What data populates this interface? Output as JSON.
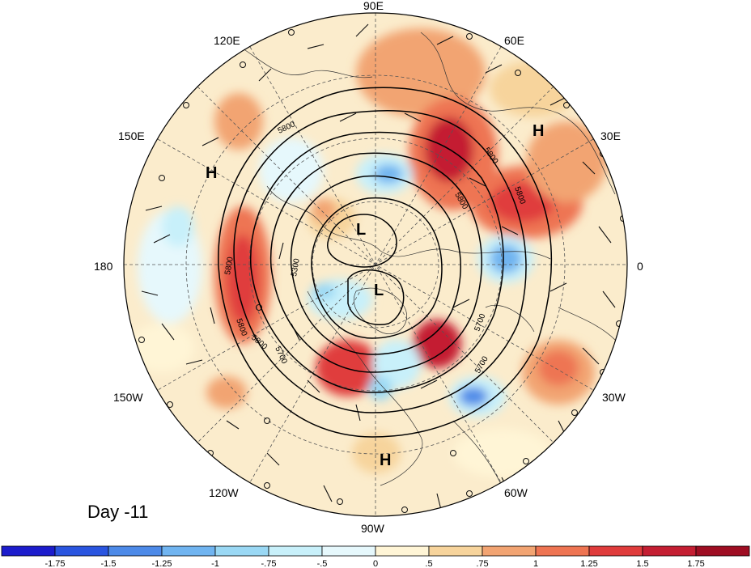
{
  "title_text": "Day -11",
  "longitude_labels": [
    {
      "id": "lon-90e",
      "text": "90E"
    },
    {
      "id": "lon-120e",
      "text": "120E"
    },
    {
      "id": "lon-60e",
      "text": "60E"
    },
    {
      "id": "lon-150e",
      "text": "150E"
    },
    {
      "id": "lon-30e",
      "text": "30E"
    },
    {
      "id": "lon-180",
      "text": "180"
    },
    {
      "id": "lon-0",
      "text": "0"
    },
    {
      "id": "lon-150w",
      "text": "150W"
    },
    {
      "id": "lon-30w",
      "text": "30W"
    },
    {
      "id": "lon-120w",
      "text": "120W"
    },
    {
      "id": "lon-60w",
      "text": "60W"
    },
    {
      "id": "lon-90w",
      "text": "90W"
    }
  ],
  "pressure_centers": [
    {
      "id": "h-east-asia",
      "text": "H"
    },
    {
      "id": "h-europe",
      "text": "H"
    },
    {
      "id": "h-central-america",
      "text": "H"
    },
    {
      "id": "l-siberia",
      "text": "L"
    },
    {
      "id": "l-canada",
      "text": "L"
    }
  ],
  "contour_labels": [
    "5800",
    "5800",
    "5800",
    "5800",
    "5800",
    "5800",
    "5700",
    "5700",
    "5700",
    "5300",
    "5800"
  ],
  "colorbar": {
    "ticks": [
      "-1.75",
      "-1.5",
      "-1.25",
      "-1",
      "-.75",
      "-.5",
      "0",
      ".5",
      ".75",
      "1",
      "1.25",
      "1.5",
      "1.75"
    ],
    "colors": [
      "#1c1ccc",
      "#2a55e0",
      "#4d8ae8",
      "#70b4f0",
      "#9ad8f4",
      "#c8f0fa",
      "#e6f8fc",
      "#fff5d6",
      "#f7d49c",
      "#f2a472",
      "#ee7452",
      "#e03c3c",
      "#c41e32",
      "#9e0d22"
    ]
  }
}
